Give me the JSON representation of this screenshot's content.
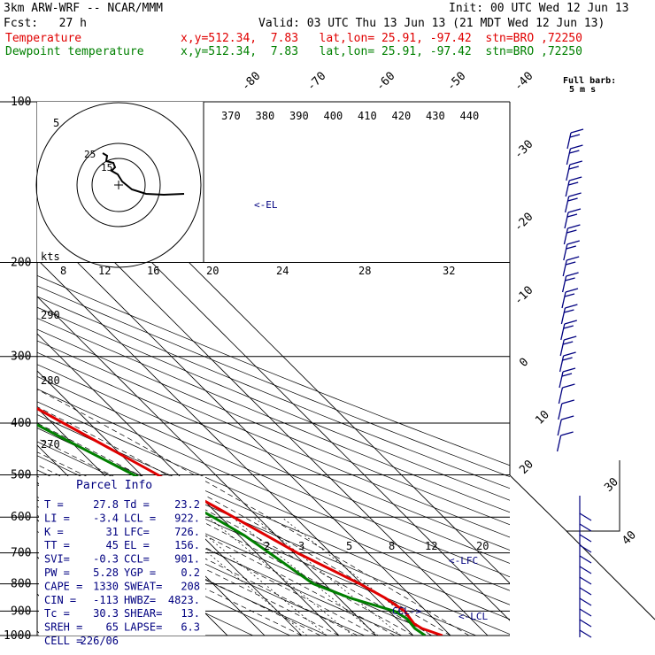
{
  "header": {
    "model": "3km ARW-WRF -- NCAR/MMM",
    "init": "Init: 00 UTC Wed 12 Jun 13",
    "fcst": "Fcst:   27 h",
    "valid": "Valid: 03 UTC Thu 13 Jun 13 (21 MDT Wed 12 Jun 13)",
    "temp_label": "Temperature",
    "temp_info": "x,y=512.34,  7.83   lat,lon= 25.91, -97.42  stn=BRO ,72250",
    "dew_label": "Dewpoint temperature",
    "dew_info": "x,y=512.34,  7.83   lat,lon= 25.91, -97.42  stn=BRO ,72250"
  },
  "colors": {
    "temperature": "#e00000",
    "dewpoint": "#008000",
    "info": "#000080",
    "wind": "#000080"
  },
  "chart_data": {
    "type": "skew-t",
    "pressure_levels": [
      100,
      200,
      300,
      400,
      500,
      600,
      700,
      800,
      900,
      1000
    ],
    "isotherm_labels": [
      "-80",
      "-70",
      "-60",
      "-50",
      "-40",
      "-30",
      "-20",
      "-10",
      "0",
      "10",
      "20",
      "30",
      "40"
    ],
    "theta_labels": [
      "370",
      "380",
      "390",
      "400",
      "410",
      "420",
      "430",
      "440"
    ],
    "mixing_ratio_labels": [
      "2",
      "3",
      "5",
      "8",
      "12",
      "20"
    ],
    "hodo_speed_labels": [
      "8",
      "12",
      "16",
      "20",
      "24",
      "28",
      "32"
    ],
    "hodo_ring_labels": [
      "5",
      "25",
      "15"
    ],
    "hodo_units": "kts",
    "theta_e_side_labels": [
      "290",
      "280",
      "270"
    ],
    "barb_header": [
      "Full barb:",
      "5 m s"
    ],
    "annotations": [
      "<-EL",
      "<-LFC",
      "<-LCL",
      "CCL->"
    ],
    "temperature": [
      {
        "p": 1000,
        "t": 27.8
      },
      {
        "p": 970,
        "t": 24.2
      },
      {
        "p": 950,
        "t": 23.4
      },
      {
        "p": 900,
        "t": 24.2
      },
      {
        "p": 850,
        "t": 22.5
      },
      {
        "p": 800,
        "t": 19.5
      },
      {
        "p": 700,
        "t": 11.0
      },
      {
        "p": 600,
        "t": 3.5
      },
      {
        "p": 500,
        "t": -5.5
      },
      {
        "p": 400,
        "t": -17.0
      },
      {
        "p": 300,
        "t": -31.5
      },
      {
        "p": 250,
        "t": -41.5
      },
      {
        "p": 200,
        "t": -52.5
      },
      {
        "p": 175,
        "t": -59
      },
      {
        "p": 150,
        "t": -66
      },
      {
        "p": 130,
        "t": -70
      },
      {
        "p": 115,
        "t": -71
      },
      {
        "p": 100,
        "t": -70
      }
    ],
    "dewpoint": [
      {
        "p": 1000,
        "t": 23.2
      },
      {
        "p": 970,
        "t": 22.3
      },
      {
        "p": 930,
        "t": 22.8
      },
      {
        "p": 900,
        "t": 21.5
      },
      {
        "p": 850,
        "t": 13.0
      },
      {
        "p": 800,
        "t": 7.0
      },
      {
        "p": 700,
        "t": 3.5
      },
      {
        "p": 650,
        "t": 1.5
      },
      {
        "p": 600,
        "t": -2.0
      },
      {
        "p": 550,
        "t": -6.5
      },
      {
        "p": 500,
        "t": -12.0
      },
      {
        "p": 400,
        "t": -25.0
      },
      {
        "p": 330,
        "t": -36.0
      },
      {
        "p": 310,
        "t": -43.0
      },
      {
        "p": 280,
        "t": -44.0
      },
      {
        "p": 250,
        "t": -47.0
      },
      {
        "p": 200,
        "t": -60.0
      },
      {
        "p": 175,
        "t": -66.0
      },
      {
        "p": 160,
        "t": -73.0
      },
      {
        "p": 150,
        "t": -77.0
      },
      {
        "p": 140,
        "t": -75.0
      },
      {
        "p": 120,
        "t": -78.0
      },
      {
        "p": 100,
        "t": -77.0
      }
    ],
    "parcel_info": {
      "title": "Parcel Info",
      "rows": [
        [
          "T  =",
          "27.8",
          "Td =",
          "23.2"
        ],
        [
          "LI =",
          "-3.4",
          "LCL =",
          "922."
        ],
        [
          "K  =",
          "31",
          "LFC=",
          "726."
        ],
        [
          "TT =",
          "45",
          "EL =",
          "156."
        ],
        [
          "SVI=",
          "-0.3",
          "CCL=",
          "901."
        ],
        [
          "PW =",
          "5.28",
          "YGP =",
          "0.2"
        ],
        [
          "CAPE =",
          "1330",
          "SWEAT=",
          "208"
        ],
        [
          "CIN =",
          "-113",
          "HWBZ=",
          "4823."
        ],
        [
          "Tc =",
          "30.3",
          "SHEAR=",
          "13."
        ],
        [
          "SREH =",
          "65",
          "LAPSE=",
          "6.3"
        ],
        [
          "CELL =",
          "226/06",
          "",
          ""
        ]
      ]
    },
    "wind_barbs_count": 20
  }
}
